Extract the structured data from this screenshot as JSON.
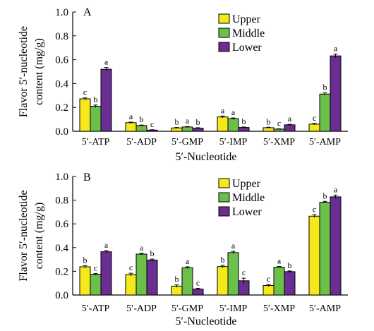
{
  "chart_data": [
    {
      "type": "bar",
      "panel_label": "A",
      "categories": [
        "5′-ATP",
        "5′-ADP",
        "5′-GMP",
        "5′-IMP",
        "5′-XMP",
        "5′-AMP"
      ],
      "series": [
        {
          "name": "Upper",
          "color": "#f5e81c",
          "values": [
            0.272,
            0.072,
            0.028,
            0.12,
            0.03,
            0.06
          ],
          "errors": [
            0.008,
            0.005,
            0.004,
            0.008,
            0.004,
            0.006
          ],
          "letters": [
            "c",
            "a",
            "b",
            "a",
            "b",
            "c"
          ]
        },
        {
          "name": "Middle",
          "color": "#6cc04a",
          "values": [
            0.21,
            0.048,
            0.036,
            0.106,
            0.018,
            0.312
          ],
          "errors": [
            0.01,
            0.004,
            0.004,
            0.006,
            0.003,
            0.01
          ],
          "letters": [
            "b",
            "b",
            "a",
            "a",
            "c",
            "b"
          ]
        },
        {
          "name": "Lower",
          "color": "#6a2d91",
          "values": [
            0.52,
            0.01,
            0.026,
            0.032,
            0.054,
            0.632
          ],
          "errors": [
            0.015,
            0.003,
            0.004,
            0.004,
            0.004,
            0.015
          ],
          "letters": [
            "a",
            "c",
            "b",
            "b",
            "a",
            "a"
          ]
        }
      ],
      "ylim": [
        0,
        1.0
      ],
      "yticks": [
        "0.0",
        "0.2",
        "0.4",
        "0.6",
        "0.8",
        "1.0"
      ],
      "xlabel": "5′-Nucleotide",
      "ylabel": "Flavor 5′-nucleotide content (mg/g)",
      "legend": "top-right"
    },
    {
      "type": "bar",
      "panel_label": "B",
      "categories": [
        "5′-ATP",
        "5′-ADP",
        "5′-GMP",
        "5′-IMP",
        "5′-XMP",
        "5′-AMP"
      ],
      "series": [
        {
          "name": "Upper",
          "color": "#f5e81c",
          "values": [
            0.238,
            0.172,
            0.075,
            0.24,
            0.08,
            0.665
          ],
          "errors": [
            0.01,
            0.012,
            0.01,
            0.01,
            0.008,
            0.012
          ],
          "letters": [
            "b",
            "c",
            "b",
            "b",
            "c",
            "c"
          ]
        },
        {
          "name": "Middle",
          "color": "#6cc04a",
          "values": [
            0.175,
            0.345,
            0.23,
            0.358,
            0.235,
            0.782
          ],
          "errors": [
            0.006,
            0.006,
            0.008,
            0.01,
            0.006,
            0.008
          ],
          "letters": [
            "c",
            "a",
            "a",
            "a",
            "a",
            "b"
          ]
        },
        {
          "name": "Lower",
          "color": "#6a2d91",
          "values": [
            0.365,
            0.295,
            0.05,
            0.12,
            0.197,
            0.828
          ],
          "errors": [
            0.01,
            0.008,
            0.006,
            0.022,
            0.006,
            0.015
          ],
          "letters": [
            "a",
            "b",
            "c",
            "c",
            "b",
            "a"
          ]
        }
      ],
      "ylim": [
        0,
        1.0
      ],
      "yticks": [
        "0.0",
        "0.2",
        "0.4",
        "0.6",
        "0.8",
        "1.0"
      ],
      "xlabel": "5′-Nucleotide",
      "ylabel": "Flavor 5′-nucleotide content (mg/g)",
      "legend": "top-left"
    }
  ]
}
